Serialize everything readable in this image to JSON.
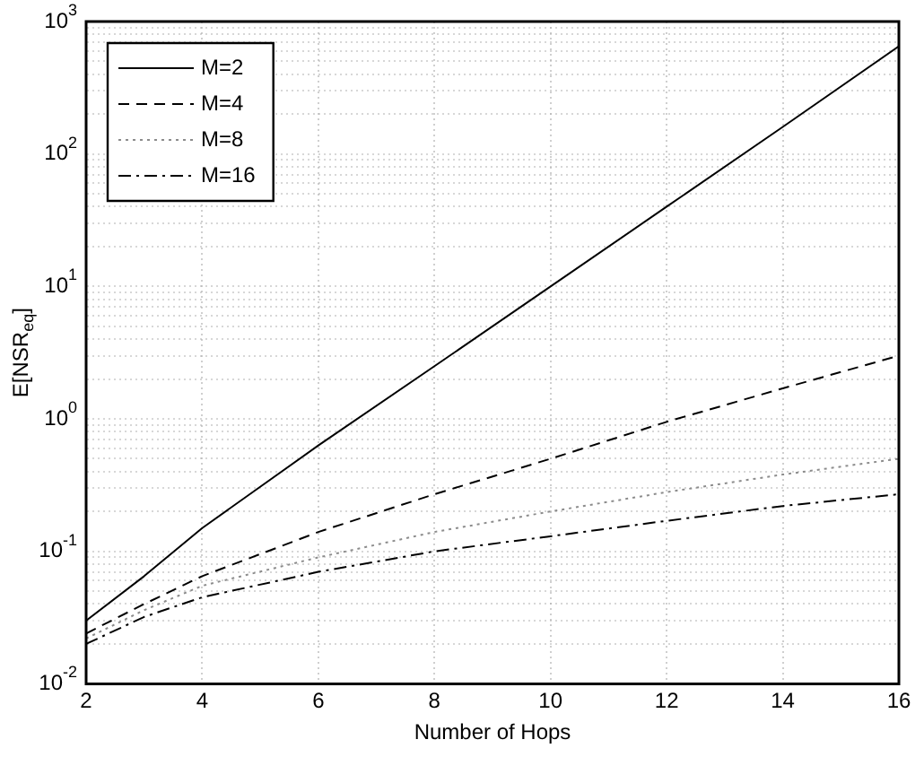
{
  "chart_data": {
    "type": "line",
    "xlabel": "Number of Hops",
    "ylabel": "E[NSR$_{eq}$]",
    "x": [
      2,
      3,
      4,
      6,
      8,
      10,
      12,
      14,
      16
    ],
    "series": [
      {
        "name": "M=2",
        "color": "#000000",
        "line_style": "solid",
        "values": [
          0.03,
          0.065,
          0.15,
          0.63,
          2.5,
          10,
          40,
          160,
          650
        ]
      },
      {
        "name": "M=4",
        "color": "#000000",
        "line_style": "dashed",
        "values": [
          0.024,
          0.04,
          0.065,
          0.14,
          0.27,
          0.5,
          0.95,
          1.7,
          3.0
        ]
      },
      {
        "name": "M=8",
        "color": "#8c8c8c",
        "line_style": "dotted",
        "values": [
          0.022,
          0.036,
          0.055,
          0.09,
          0.14,
          0.2,
          0.28,
          0.38,
          0.5
        ]
      },
      {
        "name": "M=16",
        "color": "#000000",
        "line_style": "dashdot",
        "values": [
          0.02,
          0.032,
          0.045,
          0.07,
          0.1,
          0.13,
          0.17,
          0.22,
          0.27
        ]
      }
    ],
    "xlim": [
      2,
      16
    ],
    "xticks": [
      2,
      4,
      6,
      8,
      10,
      12,
      14,
      16
    ],
    "ylim": [
      0.01,
      1000
    ],
    "yticks": [
      {
        "value": 0.01,
        "label": "10$^{-2}$"
      },
      {
        "value": 0.02,
        "label": null
      },
      {
        "value": 0.03,
        "label": null
      },
      {
        "value": 0.04,
        "label": null
      },
      {
        "value": 0.05,
        "label": null
      },
      {
        "value": 0.06,
        "label": null
      },
      {
        "value": 0.07,
        "label": null
      },
      {
        "value": 0.08,
        "label": null
      },
      {
        "value": 0.09,
        "label": null
      },
      {
        "value": 0.1,
        "label": "10$^{-1}$"
      },
      {
        "value": 0.2,
        "label": null
      },
      {
        "value": 0.3,
        "label": null
      },
      {
        "value": 0.4,
        "label": null
      },
      {
        "value": 0.5,
        "label": null
      },
      {
        "value": 0.6,
        "label": null
      },
      {
        "value": 0.7,
        "label": null
      },
      {
        "value": 0.8,
        "label": null
      },
      {
        "value": 0.9,
        "label": null
      },
      {
        "value": 1,
        "label": "10$^{0}$"
      },
      {
        "value": 2,
        "label": null
      },
      {
        "value": 3,
        "label": null
      },
      {
        "value": 4,
        "label": null
      },
      {
        "value": 5,
        "label": null
      },
      {
        "value": 6,
        "label": null
      },
      {
        "value": 7,
        "label": null
      },
      {
        "value": 8,
        "label": null
      },
      {
        "value": 9,
        "label": null
      },
      {
        "value": 10,
        "label": "10$^{1}$"
      },
      {
        "value": 20,
        "label": null
      },
      {
        "value": 30,
        "label": null
      },
      {
        "value": 40,
        "label": null
      },
      {
        "value": 50,
        "label": null
      },
      {
        "value": 60,
        "label": null
      },
      {
        "value": 70,
        "label": null
      },
      {
        "value": 80,
        "label": null
      },
      {
        "value": 90,
        "label": null
      },
      {
        "value": 100,
        "label": "10$^{2}$"
      },
      {
        "value": 200,
        "label": null
      },
      {
        "value": 300,
        "label": null
      },
      {
        "value": 400,
        "label": null
      },
      {
        "value": 500,
        "label": null
      },
      {
        "value": 600,
        "label": null
      },
      {
        "value": 700,
        "label": null
      },
      {
        "value": 800,
        "label": null
      },
      {
        "value": 900,
        "label": null
      },
      {
        "value": 1000,
        "label": "10$^{3}$"
      }
    ],
    "log": "y",
    "grid": true,
    "legend": "top left",
    "marker": "none"
  }
}
